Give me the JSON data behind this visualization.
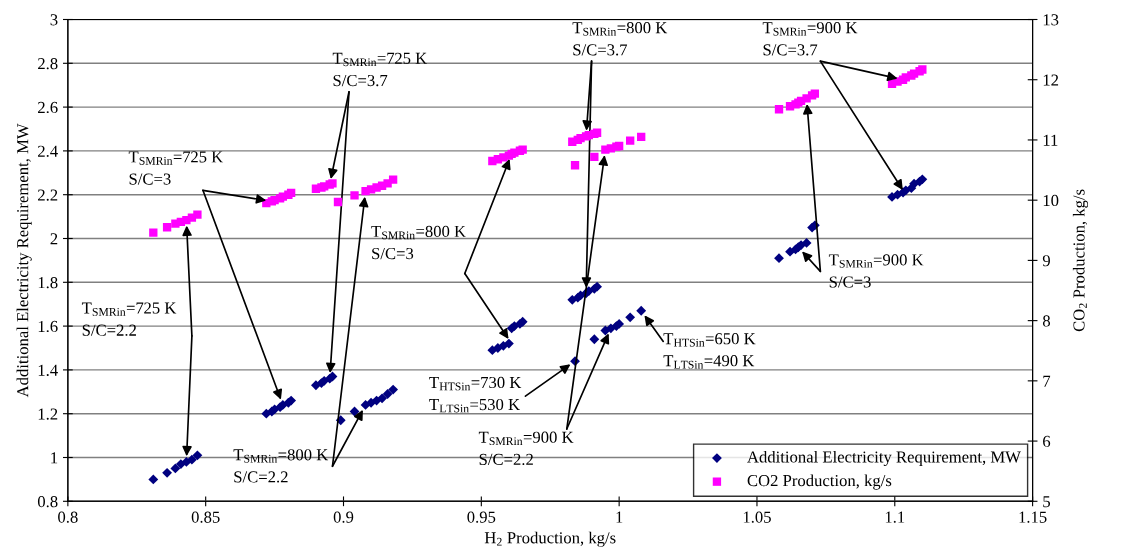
{
  "chart_data": {
    "type": "scatter",
    "xlabel": "H$_{2}$ Production, kg/s",
    "ylabel": "Additional Electricity Requirement, MW",
    "y2label": "CO$_{2}$ Production, kg/s",
    "xlim": [
      0.8,
      1.15
    ],
    "xticks": [
      0.8,
      0.85,
      0.9,
      0.95,
      1,
      1.05,
      1.1,
      1.15
    ],
    "ylim": [
      0.8,
      3
    ],
    "yticks": [
      0.8,
      1,
      1.2,
      1.4,
      1.6,
      1.8,
      2,
      2.2,
      2.4,
      2.6,
      2.8,
      3
    ],
    "y2lim": [
      5,
      13
    ],
    "y2ticks": [
      5,
      6,
      7,
      8,
      9,
      10,
      11,
      12,
      13
    ],
    "grid": "y",
    "legend": "bottom right",
    "series": [
      {
        "name": "Additional Electricity Requirement, MW",
        "color": "#000080",
        "marker": "diamond",
        "x": [
          0.831,
          0.836,
          0.839,
          0.841,
          0.843,
          0.845,
          0.847,
          0.872,
          0.874,
          0.875,
          0.877,
          0.878,
          0.88,
          0.881,
          0.89,
          0.892,
          0.893,
          0.895,
          0.896,
          0.899,
          0.904,
          0.908,
          0.91,
          0.912,
          0.914,
          0.916,
          0.918,
          0.954,
          0.956,
          0.958,
          0.96,
          0.961,
          0.962,
          0.964,
          0.965,
          0.983,
          0.985,
          0.986,
          0.988,
          0.989,
          0.991,
          0.992,
          0.984,
          0.991,
          0.995,
          0.997,
          0.999,
          1.0,
          1.004,
          1.008,
          1.058,
          1.062,
          1.064,
          1.065,
          1.066,
          1.068,
          1.07,
          1.071,
          1.099,
          1.101,
          1.103,
          1.104,
          1.106,
          1.107,
          1.109,
          1.11
        ],
        "values": [
          0.9,
          0.93,
          0.95,
          0.97,
          0.98,
          0.99,
          1.01,
          1.2,
          1.21,
          1.22,
          1.23,
          1.24,
          1.25,
          1.26,
          1.33,
          1.34,
          1.35,
          1.36,
          1.37,
          1.17,
          1.21,
          1.24,
          1.25,
          1.26,
          1.27,
          1.29,
          1.31,
          1.49,
          1.5,
          1.51,
          1.52,
          1.59,
          1.6,
          1.61,
          1.62,
          1.72,
          1.73,
          1.74,
          1.75,
          1.76,
          1.77,
          1.78,
          1.44,
          1.54,
          1.58,
          1.59,
          1.6,
          1.61,
          1.64,
          1.67,
          1.91,
          1.94,
          1.95,
          1.96,
          1.97,
          1.98,
          2.05,
          2.06,
          2.19,
          2.2,
          2.21,
          2.22,
          2.23,
          2.25,
          2.26,
          2.27
        ]
      },
      {
        "name": "CO2 Production, kg/s",
        "color": "#ff00ff",
        "marker": "square",
        "axis": "y2",
        "x": [
          0.831,
          0.836,
          0.839,
          0.841,
          0.843,
          0.845,
          0.847,
          0.872,
          0.874,
          0.875,
          0.877,
          0.878,
          0.88,
          0.881,
          0.89,
          0.892,
          0.893,
          0.895,
          0.896,
          0.898,
          0.904,
          0.908,
          0.91,
          0.912,
          0.914,
          0.916,
          0.918,
          0.954,
          0.956,
          0.958,
          0.96,
          0.961,
          0.962,
          0.964,
          0.965,
          0.983,
          0.985,
          0.986,
          0.988,
          0.989,
          0.991,
          0.992,
          0.984,
          0.991,
          0.995,
          0.997,
          0.999,
          1.0,
          1.004,
          1.008,
          1.058,
          1.062,
          1.064,
          1.065,
          1.066,
          1.068,
          1.07,
          1.071,
          1.099,
          1.101,
          1.103,
          1.104,
          1.106,
          1.107,
          1.109,
          1.11
        ],
        "values": [
          9.46,
          9.55,
          9.61,
          9.64,
          9.67,
          9.71,
          9.76,
          9.95,
          9.98,
          10.0,
          10.03,
          10.06,
          10.09,
          10.12,
          10.19,
          10.21,
          10.23,
          10.26,
          10.28,
          9.97,
          10.08,
          10.15,
          10.18,
          10.21,
          10.24,
          10.28,
          10.34,
          10.65,
          10.68,
          10.71,
          10.74,
          10.77,
          10.79,
          10.82,
          10.84,
          10.97,
          11.0,
          11.03,
          11.06,
          11.08,
          11.1,
          11.12,
          10.58,
          10.72,
          10.84,
          10.86,
          10.89,
          10.9,
          10.99,
          11.05,
          11.51,
          11.56,
          11.59,
          11.62,
          11.65,
          11.69,
          11.74,
          11.77,
          11.93,
          11.97,
          12.0,
          12.04,
          12.07,
          12.1,
          12.14,
          12.17
        ]
      }
    ],
    "annotations": [
      {
        "text": "T$_{SMRin}$=725 K\nS/C=2.2",
        "x": 0.843,
        "y": 0.98
      },
      {
        "text": "T$_{SMRin}$=725 K\nS/C=3",
        "x": 0.878,
        "y": 1.24
      },
      {
        "text": "T$_{SMRin}$=725 K\nS/C=3.7",
        "x": 0.895,
        "y": 1.36
      },
      {
        "text": "T$_{SMRin}$=800 K\nS/C=3",
        "x": 0.961,
        "y": 1.52
      },
      {
        "text": "T$_{SMRin}$=800 K\nS/C=2.2",
        "x": 0.908,
        "y": 1.24
      },
      {
        "text": "T$_{SMRin}$=800 K\nS/C=3.7",
        "x": 0.988,
        "y": 1.75
      },
      {
        "text": "T$_{SMRin}$=900 K\nS/C=3.7",
        "x": 1.104,
        "y": 2.2
      },
      {
        "text": "T$_{SMRin}$=900 K\nS/C=3",
        "x": 1.065,
        "y": 1.96
      },
      {
        "text": "T$_{SMRin}$=900 K\nS/C=2.2",
        "x": 0.997,
        "y": 1.59
      },
      "T$_{HTSin}$=730 K\nT$_{LTSin}$=530 K",
      "T$_{HTSin}$=650 K\nT$_{LTSin}$=490 K"
    ]
  }
}
